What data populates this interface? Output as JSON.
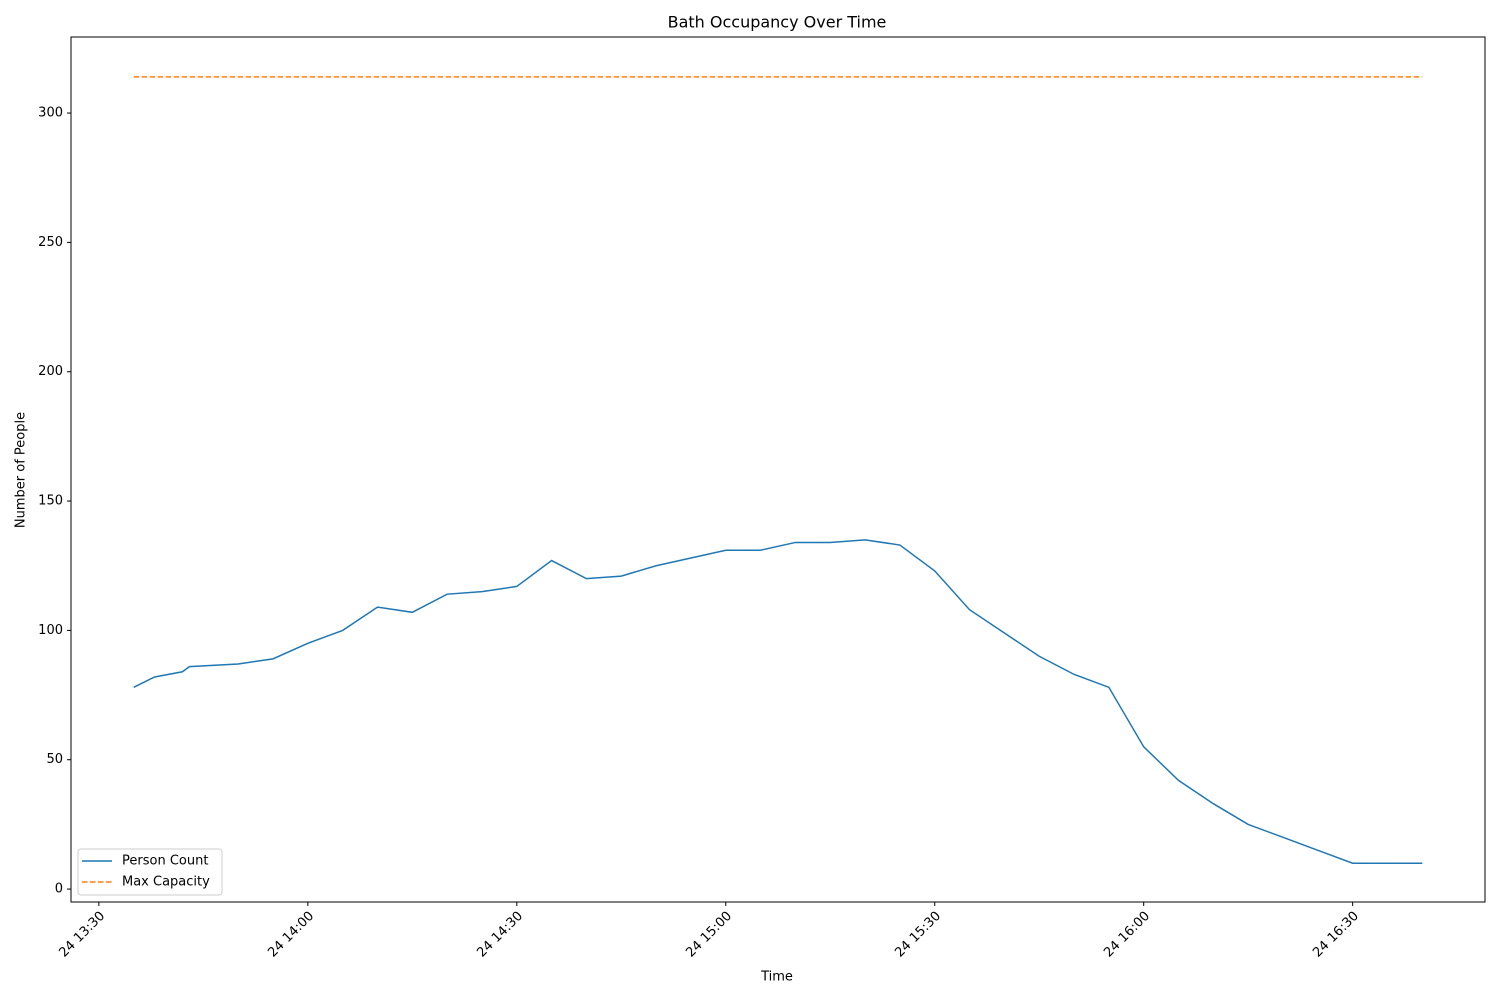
{
  "chart_data": {
    "type": "line",
    "title": "Bath Occupancy Over Time",
    "x_label": "Time",
    "y_label": "Number of People",
    "x": [
      "24 13:35",
      "24 13:38",
      "24 13:42",
      "24 13:43",
      "24 13:50",
      "24 13:55",
      "24 14:00",
      "24 14:05",
      "24 14:10",
      "24 14:15",
      "24 14:20",
      "24 14:25",
      "24 14:30",
      "24 14:35",
      "24 14:40",
      "24 14:45",
      "24 14:50",
      "24 14:55",
      "24 15:00",
      "24 15:05",
      "24 15:10",
      "24 15:15",
      "24 15:20",
      "24 15:25",
      "24 15:30",
      "24 15:35",
      "24 15:40",
      "24 15:45",
      "24 15:50",
      "24 15:55",
      "24 16:00",
      "24 16:05",
      "24 16:10",
      "24 16:15",
      "24 16:20",
      "24 16:25",
      "24 16:30",
      "24 16:35",
      "24 16:40"
    ],
    "series": [
      {
        "name": "Person Count",
        "color": "#1f77b4",
        "style": "solid",
        "values": [
          78,
          82,
          84,
          86,
          87,
          89,
          95,
          100,
          109,
          107,
          114,
          115,
          117,
          127,
          120,
          121,
          125,
          128,
          131,
          131,
          134,
          134,
          135,
          133,
          123,
          108,
          99,
          90,
          83,
          78,
          55,
          42,
          33,
          25,
          20,
          15,
          10,
          10,
          10
        ]
      },
      {
        "name": "Max Capacity",
        "color": "#ff7f0e",
        "style": "dashed",
        "values": [
          314,
          314,
          314,
          314,
          314,
          314,
          314,
          314,
          314,
          314,
          314,
          314,
          314,
          314,
          314,
          314,
          314,
          314,
          314,
          314,
          314,
          314,
          314,
          314,
          314,
          314,
          314,
          314,
          314,
          314,
          314,
          314,
          314,
          314,
          314,
          314,
          314,
          314,
          314
        ]
      }
    ],
    "xlim": [
      "24 13:26",
      "24 16:49"
    ],
    "xticks": [
      "24 13:30",
      "24 14:00",
      "24 14:30",
      "24 15:00",
      "24 15:30",
      "24 16:00",
      "24 16:30"
    ],
    "ylim": [
      -5,
      329.4
    ],
    "yticks": [
      0,
      50,
      100,
      150,
      200,
      250,
      300
    ],
    "legend": "lower left",
    "grid": false
  }
}
